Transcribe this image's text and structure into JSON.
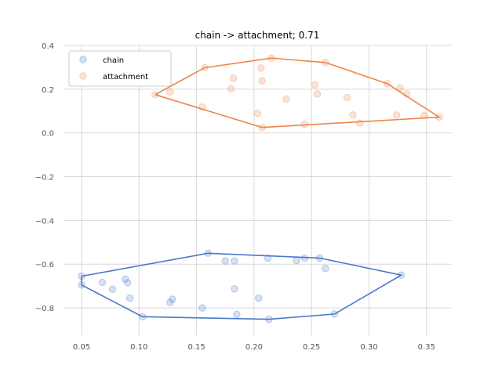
{
  "chart_data": {
    "type": "scatter",
    "title": "chain -> attachment; 0.71",
    "xlabel": "",
    "ylabel": "",
    "xlim": [
      0.035,
      0.372
    ],
    "ylim": [
      -0.925,
      0.4
    ],
    "x_ticks": [
      0.05,
      0.1,
      0.15,
      0.2,
      0.25,
      0.3,
      0.35
    ],
    "x_tick_labels": [
      "0.05",
      "0.10",
      "0.15",
      "0.20",
      "0.25",
      "0.30",
      "0.35"
    ],
    "y_ticks": [
      0.4,
      0.2,
      0.0,
      -0.2,
      -0.4,
      -0.6,
      -0.8
    ],
    "y_tick_labels": [
      "0.4",
      "0.2",
      "0.0",
      "−0.2",
      "−0.4",
      "−0.6",
      "−0.8"
    ],
    "grid": "vertical",
    "legend_position": "top-left",
    "series": [
      {
        "name": "chain",
        "color": "#4878cf",
        "points": [
          [
            0.05,
            -0.655
          ],
          [
            0.05,
            -0.695
          ],
          [
            0.068,
            -0.683
          ],
          [
            0.077,
            -0.715
          ],
          [
            0.088,
            -0.668
          ],
          [
            0.09,
            -0.685
          ],
          [
            0.092,
            -0.755
          ],
          [
            0.103,
            -0.84
          ],
          [
            0.127,
            -0.775
          ],
          [
            0.129,
            -0.76
          ],
          [
            0.155,
            -0.8
          ],
          [
            0.16,
            -0.55
          ],
          [
            0.175,
            -0.585
          ],
          [
            0.183,
            -0.585
          ],
          [
            0.183,
            -0.713
          ],
          [
            0.185,
            -0.83
          ],
          [
            0.204,
            -0.755
          ],
          [
            0.212,
            -0.572
          ],
          [
            0.213,
            -0.852
          ],
          [
            0.237,
            -0.583
          ],
          [
            0.244,
            -0.573
          ],
          [
            0.257,
            -0.572
          ],
          [
            0.262,
            -0.62
          ],
          [
            0.27,
            -0.828
          ],
          [
            0.328,
            -0.65
          ]
        ],
        "hull": [
          [
            0.05,
            -0.655
          ],
          [
            0.16,
            -0.55
          ],
          [
            0.257,
            -0.572
          ],
          [
            0.328,
            -0.65
          ],
          [
            0.27,
            -0.828
          ],
          [
            0.213,
            -0.852
          ],
          [
            0.103,
            -0.84
          ],
          [
            0.05,
            -0.695
          ]
        ]
      },
      {
        "name": "attachment",
        "color": "#ee854a",
        "points": [
          [
            0.114,
            0.175
          ],
          [
            0.127,
            0.188
          ],
          [
            0.155,
            0.118
          ],
          [
            0.157,
            0.298
          ],
          [
            0.18,
            0.202
          ],
          [
            0.182,
            0.25
          ],
          [
            0.203,
            0.09
          ],
          [
            0.206,
            0.297
          ],
          [
            0.207,
            0.025
          ],
          [
            0.207,
            0.238
          ],
          [
            0.215,
            0.342
          ],
          [
            0.228,
            0.155
          ],
          [
            0.244,
            0.04
          ],
          [
            0.253,
            0.22
          ],
          [
            0.255,
            0.178
          ],
          [
            0.262,
            0.322
          ],
          [
            0.281,
            0.162
          ],
          [
            0.286,
            0.082
          ],
          [
            0.292,
            0.045
          ],
          [
            0.316,
            0.225
          ],
          [
            0.324,
            0.082
          ],
          [
            0.327,
            0.205
          ],
          [
            0.333,
            0.178
          ],
          [
            0.348,
            0.08
          ],
          [
            0.361,
            0.072
          ]
        ],
        "hull": [
          [
            0.114,
            0.175
          ],
          [
            0.157,
            0.298
          ],
          [
            0.215,
            0.342
          ],
          [
            0.262,
            0.322
          ],
          [
            0.316,
            0.225
          ],
          [
            0.361,
            0.072
          ],
          [
            0.207,
            0.025
          ]
        ]
      }
    ]
  }
}
